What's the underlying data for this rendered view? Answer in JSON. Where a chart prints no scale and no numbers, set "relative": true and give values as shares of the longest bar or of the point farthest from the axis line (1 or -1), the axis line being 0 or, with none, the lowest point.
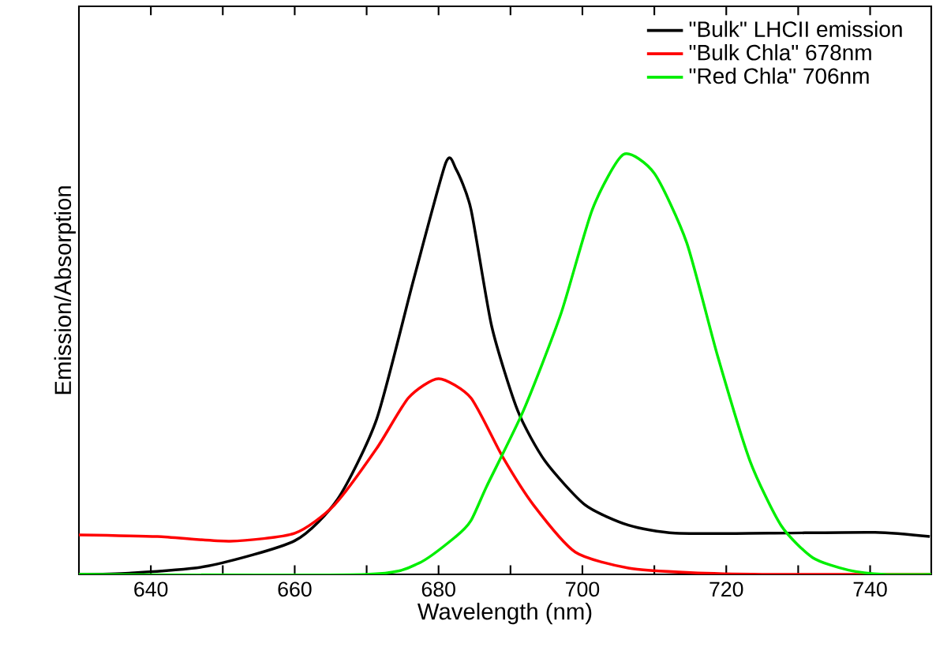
{
  "chart_data": {
    "type": "line",
    "relative": true,
    "xlabel": "Wavelength (nm)",
    "ylabel": "Emission/Absorption",
    "legend": "top right",
    "marker": "none",
    "line_style": "solid",
    "xlim": [
      630,
      748.5
    ],
    "xticks": [
      640,
      {
        "value": 650,
        "label": null
      },
      660,
      {
        "value": 670,
        "label": null
      },
      680,
      {
        "value": 690,
        "label": null
      },
      700,
      {
        "value": 710,
        "label": null
      },
      720,
      {
        "value": 730,
        "label": null
      },
      740
    ],
    "series": [
      {
        "name": "\"Bulk\" LHCII emission",
        "color": "#000000",
        "x": [
          630,
          637,
          648,
          660,
          666,
          671.4,
          676.5,
          681,
          682.4,
          684.5,
          687.4,
          691,
          694.8,
          700.4,
          706.4,
          712.9,
          726,
          740.7,
          748.3
        ],
        "values": [
          0,
          0.003,
          0.02,
          0.08,
          0.18,
          0.37,
          0.7,
          0.98,
          0.966,
          0.87,
          0.59,
          0.39,
          0.27,
          0.165,
          0.117,
          0.098,
          0.098,
          0.1,
          0.09
        ]
      },
      {
        "name": "\"Bulk Chla\" 678nm",
        "color": "#ff0000",
        "x": [
          630,
          640.9,
          651,
          660,
          665.5,
          671.4,
          675.8,
          680,
          684.5,
          688.9,
          693.2,
          699,
          706.4,
          715,
          725,
          748.5
        ],
        "values": [
          0.094,
          0.09,
          0.079,
          0.098,
          0.165,
          0.3,
          0.42,
          0.466,
          0.42,
          0.28,
          0.165,
          0.053,
          0.015,
          0.004,
          0,
          0
        ]
      },
      {
        "name": "\"Red Chla\" 706nm",
        "color": "#00ee00",
        "x": [
          630,
          670,
          677.3,
          682.4,
          684.5,
          686.7,
          691.8,
          697,
          701.4,
          705.7,
          710,
          714.5,
          718.8,
          723.3,
          727.6,
          732,
          737,
          742,
          748.5
        ],
        "values": [
          0,
          0,
          0.027,
          0.09,
          0.128,
          0.21,
          0.39,
          0.62,
          0.87,
          1.0,
          0.955,
          0.79,
          0.52,
          0.27,
          0.117,
          0.04,
          0.01,
          0,
          0
        ]
      }
    ]
  }
}
